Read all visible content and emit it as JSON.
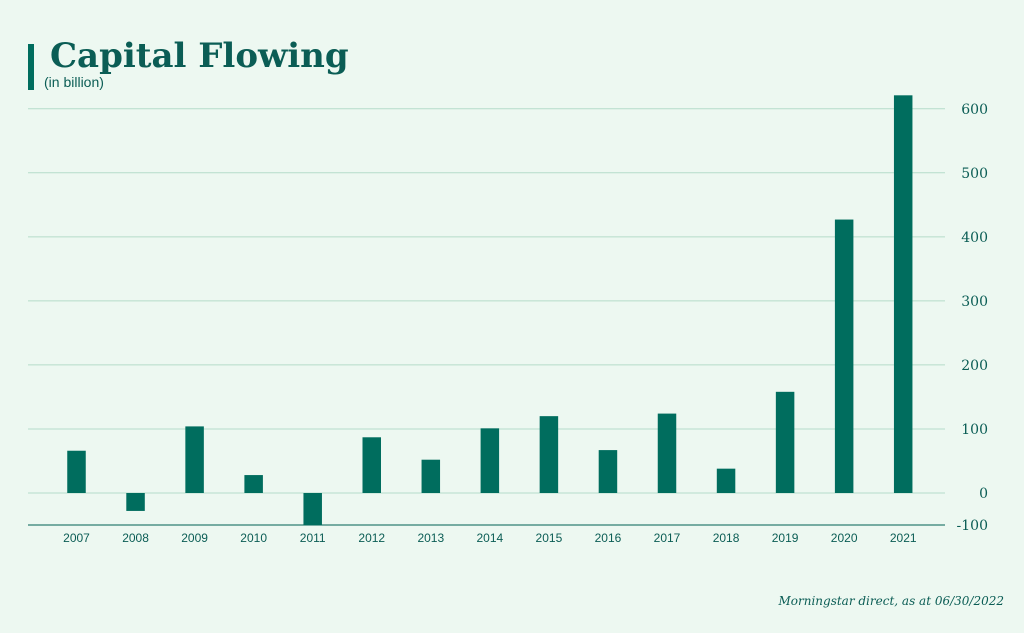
{
  "header": {
    "title": "Capital Flowing",
    "subtitle": "(in billion)"
  },
  "footer": {
    "source": "Morningstar direct, as at 06/30/2022"
  },
  "colors": {
    "bar": "#006d5e",
    "text": "#0b5d55",
    "grid": "#b5dcca",
    "background": "#edf8f1"
  },
  "chart_data": {
    "type": "bar",
    "title": "Capital Flowing",
    "subtitle": "(in billion)",
    "xlabel": "",
    "ylabel": "",
    "categories": [
      "2007",
      "2008",
      "2009",
      "2010",
      "2011",
      "2012",
      "2013",
      "2014",
      "2015",
      "2016",
      "2017",
      "2018",
      "2019",
      "2020",
      "2021"
    ],
    "values": [
      66,
      -28,
      104,
      28,
      -50,
      87,
      52,
      101,
      120,
      67,
      124,
      38,
      158,
      427,
      621
    ],
    "ylim": [
      -50,
      630
    ],
    "yticks": [
      -100,
      0,
      100,
      200,
      300,
      400,
      500,
      600
    ],
    "ytick_labels": [
      "-100",
      "0",
      "100",
      "200",
      "300",
      "400",
      "500",
      "600"
    ],
    "y_axis_side": "right",
    "grid": true,
    "legend": "none"
  }
}
